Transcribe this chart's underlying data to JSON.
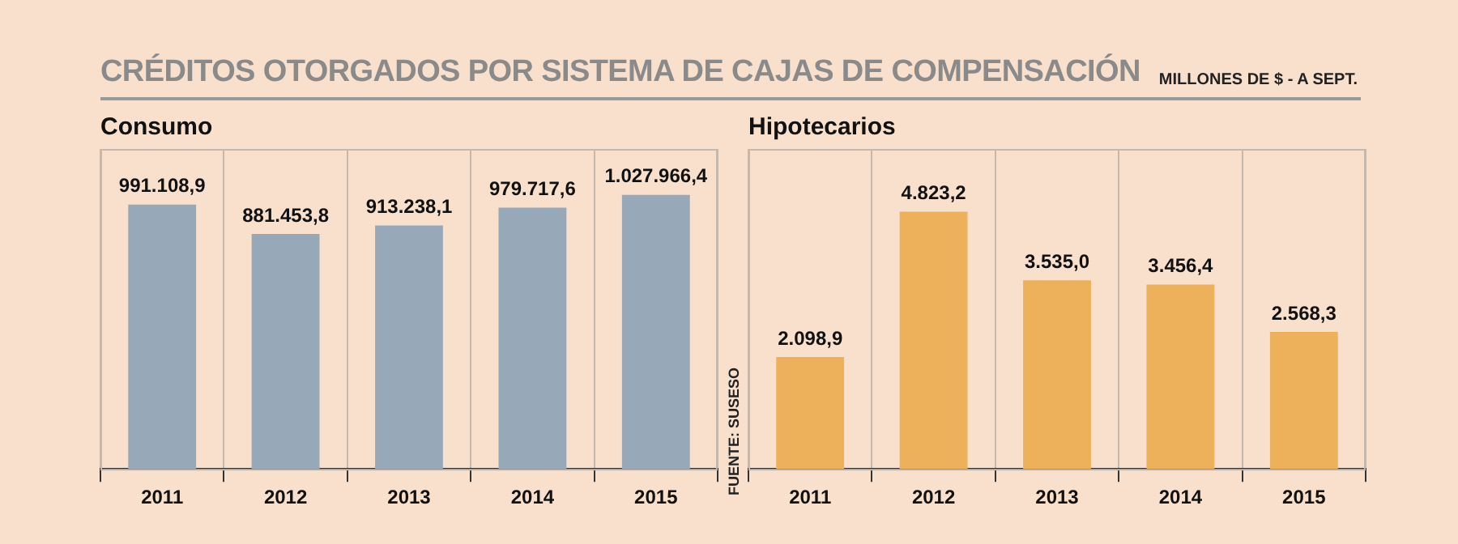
{
  "chart_data": [
    {
      "type": "bar",
      "title": "Consumo",
      "categories": [
        "2011",
        "2012",
        "2013",
        "2014",
        "2015"
      ],
      "series": [
        {
          "color": "#97a8b8",
          "values": [
            991108.9,
            881453.8,
            913238.1,
            979717.6,
            1027966.4
          ],
          "value_labels": [
            "991.108,9",
            "881.453,8",
            "913.238,1",
            "979.717,6",
            "1.027.966,4"
          ]
        }
      ],
      "annotations": [
        "CRÉDITOS OTORGADOS POR SISTEMA DE CAJAS DE COMPENSACIÓN",
        "MILLONES DE $ - A SEPT."
      ],
      "grid": "x",
      "legend": false,
      "tick_labels": "x"
    },
    {
      "type": "bar",
      "title": "Hipotecarios",
      "categories": [
        "2011",
        "2012",
        "2013",
        "2014",
        "2015"
      ],
      "series": [
        {
          "color": "#ecb15a",
          "values": [
            2098.9,
            4823.2,
            3535.0,
            3456.4,
            2568.3
          ],
          "value_labels": [
            "2.098,9",
            "4.823,2",
            "3.535,0",
            "3.456,4",
            "2.568,3"
          ]
        }
      ],
      "annotations": [
        "FUENTE: SUSESO"
      ],
      "grid": "x",
      "legend": false,
      "tick_labels": "x"
    }
  ]
}
